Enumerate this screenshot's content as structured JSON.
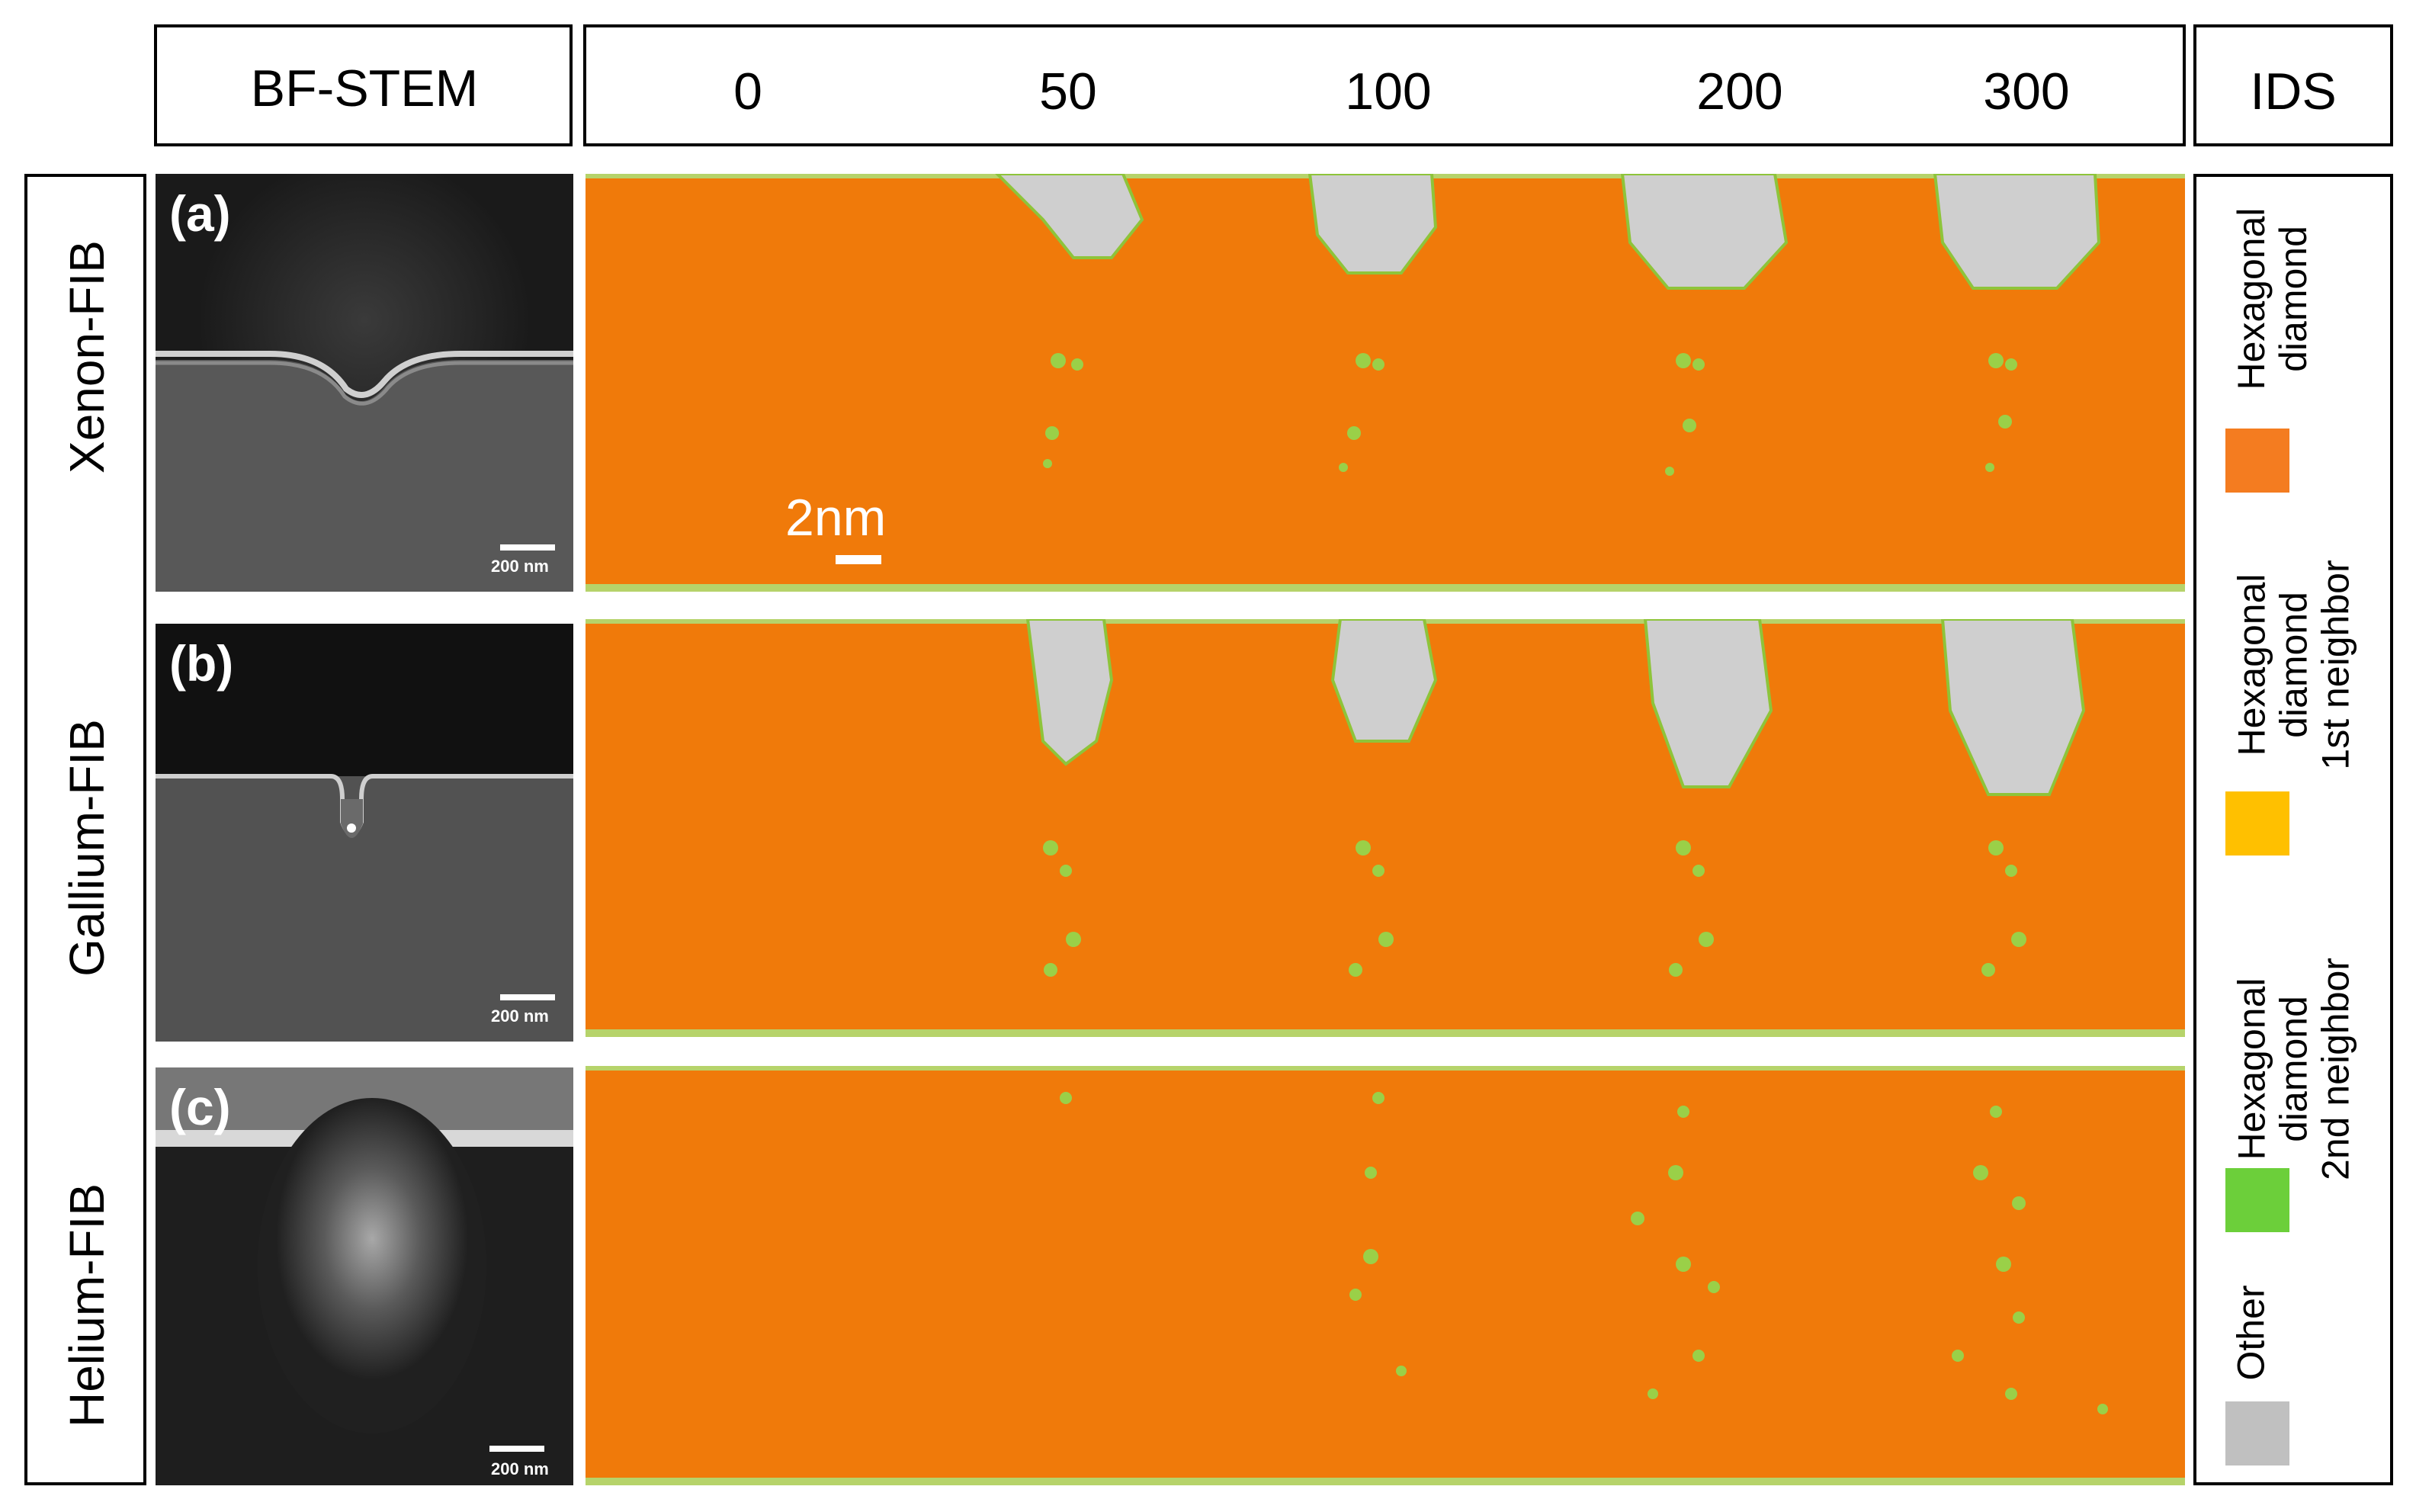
{
  "header": {
    "bf_stem": "BF-STEM",
    "doses": [
      "0",
      "50",
      "100",
      "200",
      "300"
    ],
    "ids": "IDS"
  },
  "rows": [
    {
      "label": "Xenon-FIB",
      "panel": "(a)",
      "scale": "200 nm"
    },
    {
      "label": "Gallium-FIB",
      "panel": "(b)",
      "scale": "200 nm"
    },
    {
      "label": "Helium-FIB",
      "panel": "(c)",
      "scale": "200 nm"
    }
  ],
  "md_scale": "2nm",
  "legend": [
    {
      "line1": "Hexagonal",
      "line2": "diamond",
      "line3": "",
      "color": "#f47c20"
    },
    {
      "line1": "Hexagonal",
      "line2": "diamond",
      "line3": "1st neighbor",
      "color": "#ffc000"
    },
    {
      "line1": "Hexagonal",
      "line2": "diamond",
      "line3": "2nd neighbor",
      "color": "#6ccf3a"
    },
    {
      "line1": "Other",
      "line2": "",
      "line3": "",
      "color": "#c0c0c0"
    }
  ]
}
